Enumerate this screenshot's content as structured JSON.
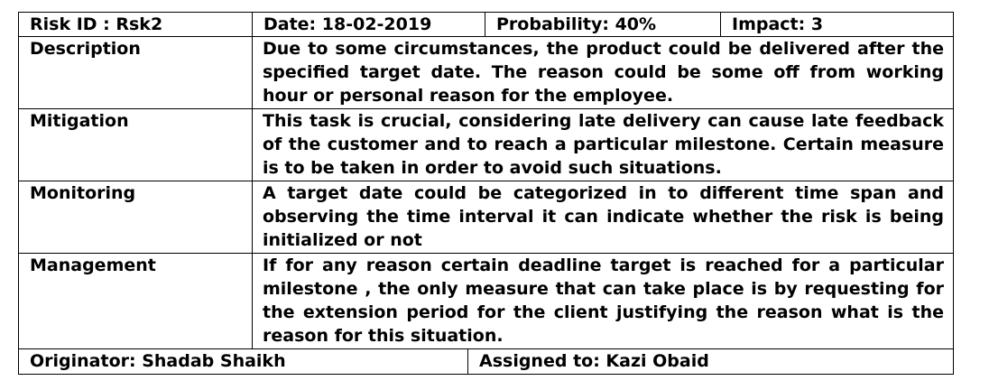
{
  "header": {
    "risk_id": "Risk ID : Rsk2",
    "date": "Date: 18-02-2019",
    "probability": "Probability: 40%",
    "impact": "Impact: 3"
  },
  "rows": [
    {
      "label": "Description",
      "text": "Due to some circumstances, the product could be delivered after the specified target date. The reason could be some off from working hour or personal reason for the employee."
    },
    {
      "label": "Mitigation",
      "text": "This task is crucial, considering late delivery can cause late feedback of the customer and to reach a particular milestone. Certain measure is to be taken in order to avoid such situations."
    },
    {
      "label": "Monitoring",
      "text": "A target date could be categorized in to different time span and observing the time interval it can indicate whether the risk is being initialized or not"
    },
    {
      "label": "Management",
      "text": "If for any reason certain deadline target is reached for a particular milestone , the only measure that can take place is by requesting for the extension period for the client justifying the reason what is the reason for this situation."
    }
  ],
  "footer": {
    "originator": "Originator: Shadab Shaikh",
    "assigned": "Assigned to: Kazi Obaid"
  }
}
